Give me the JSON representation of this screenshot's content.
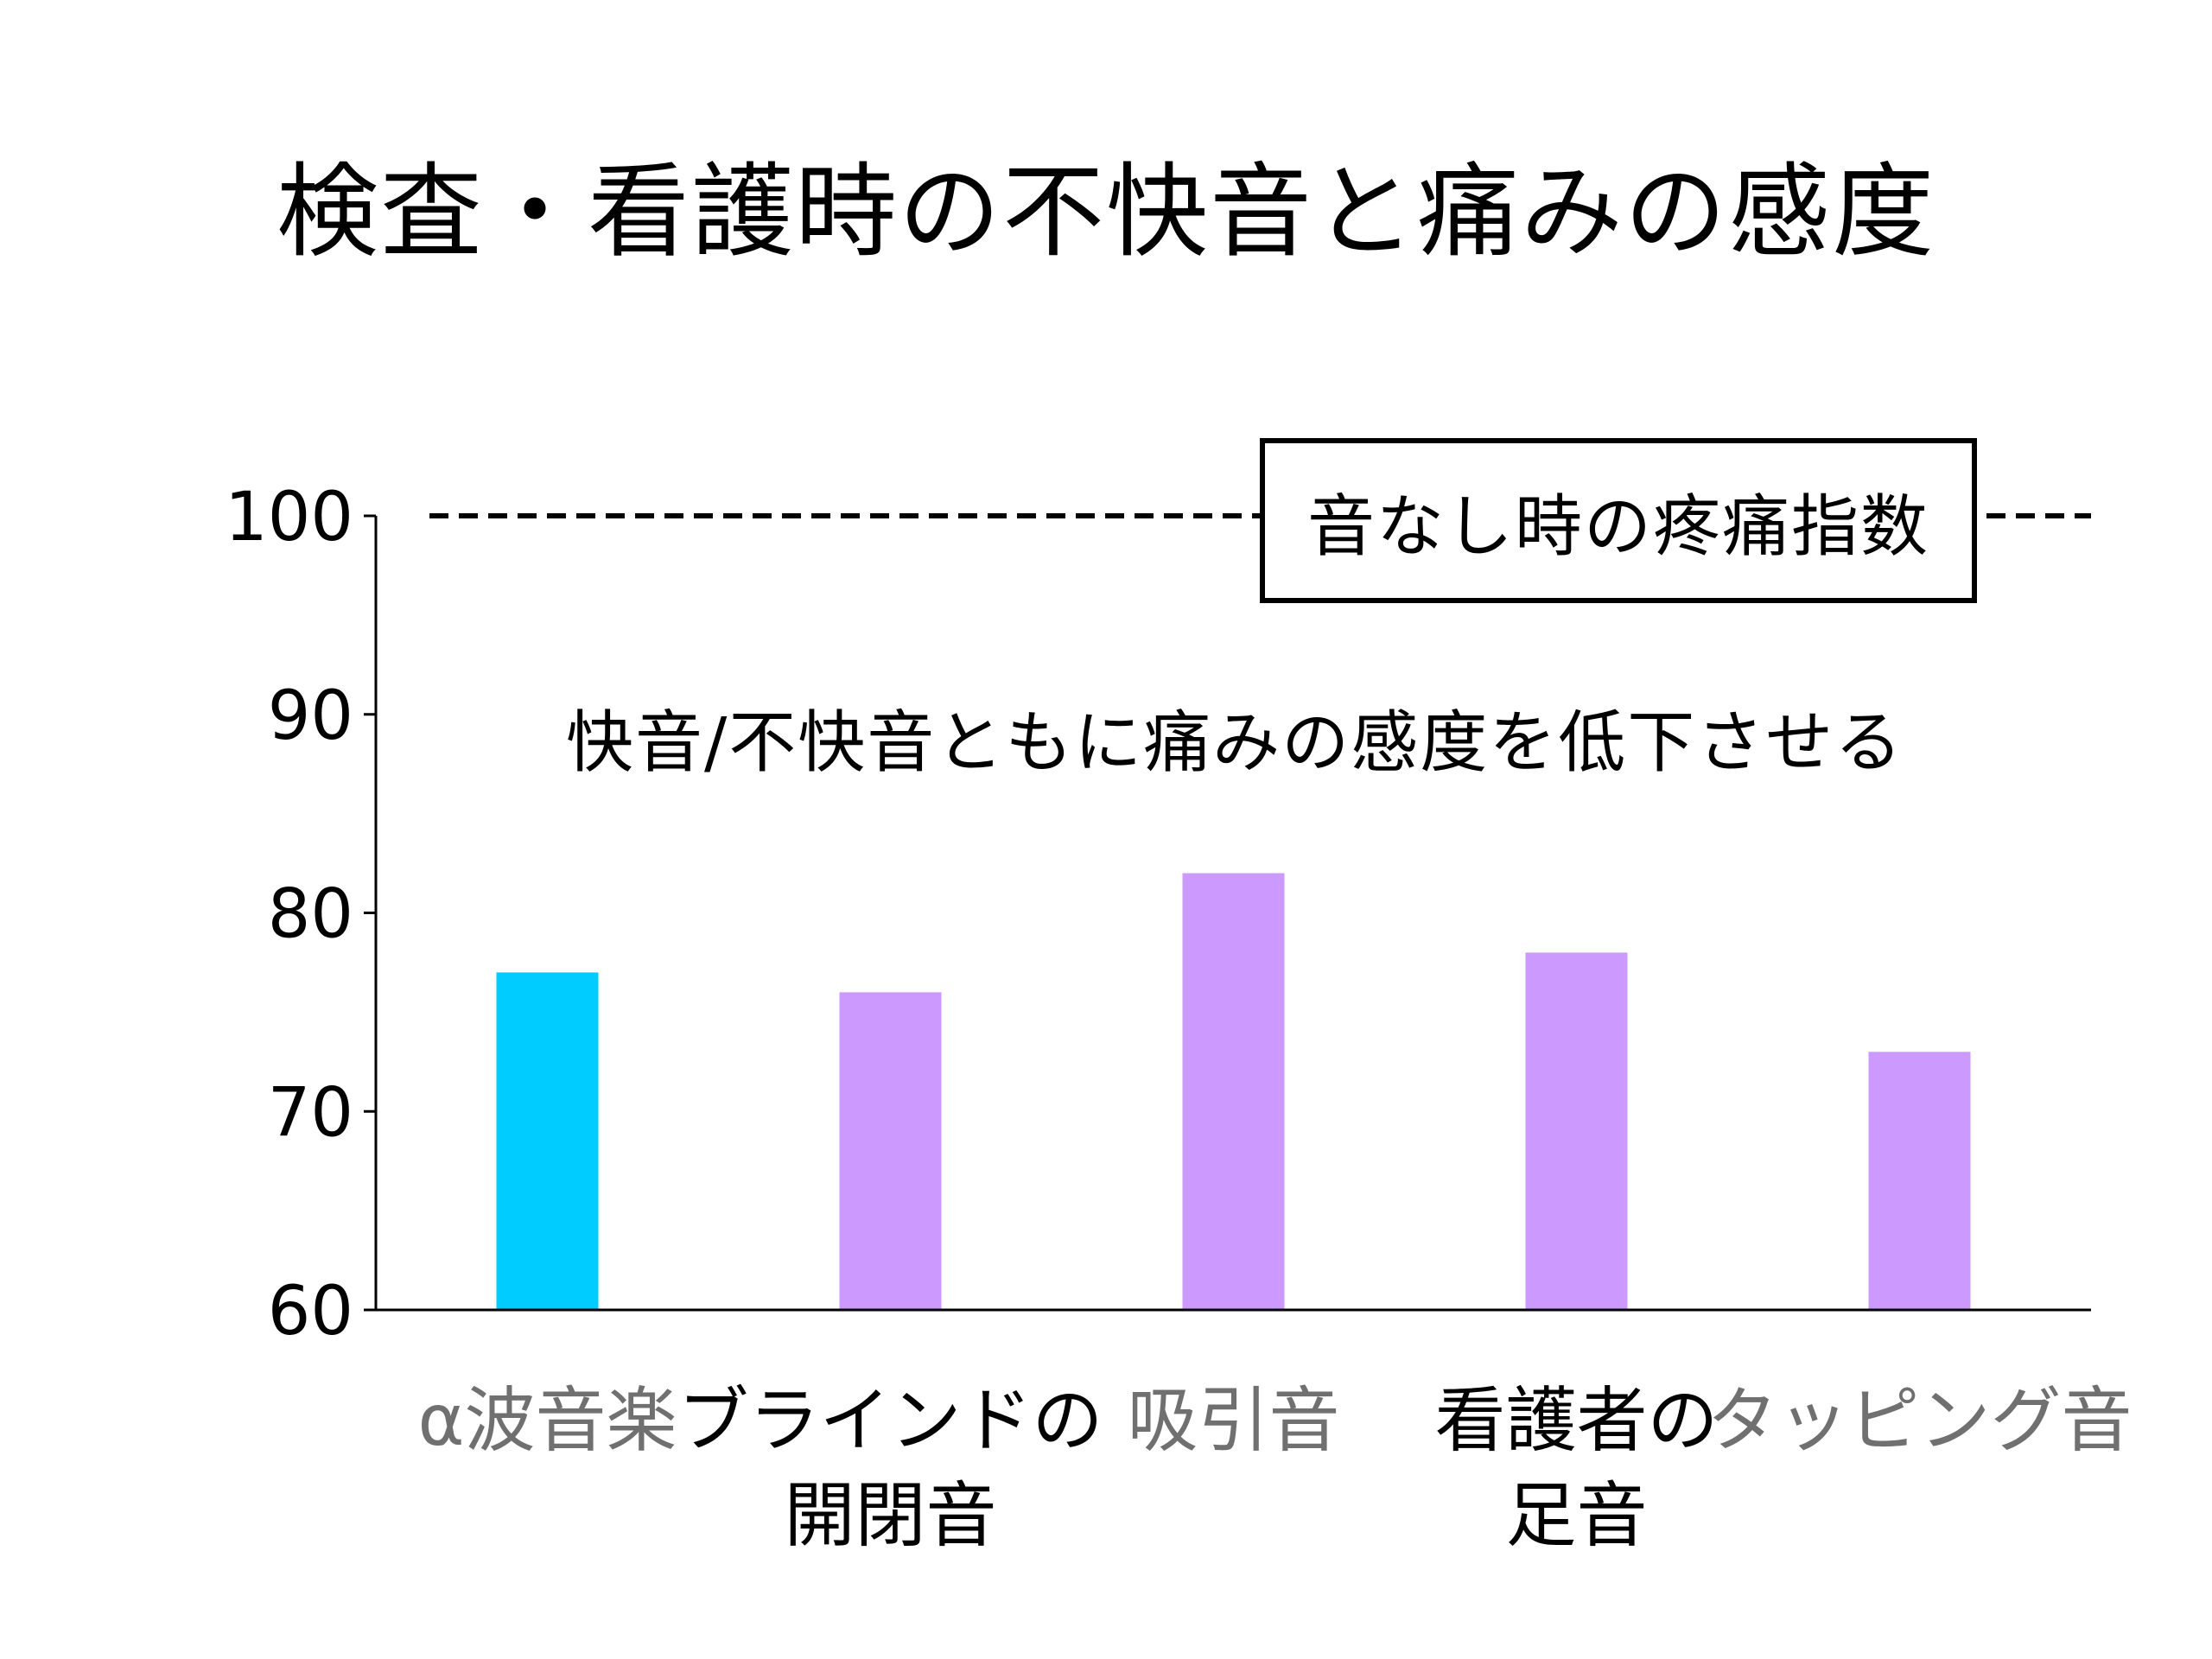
{
  "title": "検査・看護時の不快音と痛みの感度",
  "reference_box": "音なし時の疼痛指数",
  "annotation": "快音/不快音ともに痛みの感度を低下させる",
  "chart_data": {
    "type": "bar",
    "title": "検査・看護時の不快音と痛みの感度",
    "xlabel": "",
    "ylabel": "",
    "ylim": [
      60,
      100
    ],
    "yticks": [
      "60",
      "70",
      "80",
      "90",
      "100"
    ],
    "categories": [
      [
        "α波音楽"
      ],
      [
        "ブラインドの",
        "開閉音"
      ],
      [
        "吸引音"
      ],
      [
        "看護者の",
        "足音"
      ],
      [
        "タッピング音"
      ]
    ],
    "values": [
      77,
      76,
      82,
      78,
      73
    ],
    "bar_colors": [
      "#00ccff",
      "#cc99ff",
      "#cc99ff",
      "#cc99ff",
      "#cc99ff"
    ],
    "label_colors": [
      "#707070",
      "#000000",
      "#707070",
      "#000000",
      "#707070"
    ],
    "reference_line": {
      "value": 100,
      "style": "dashed",
      "label": "音なし時の疼痛指数"
    },
    "grid": false,
    "legend": "none"
  }
}
